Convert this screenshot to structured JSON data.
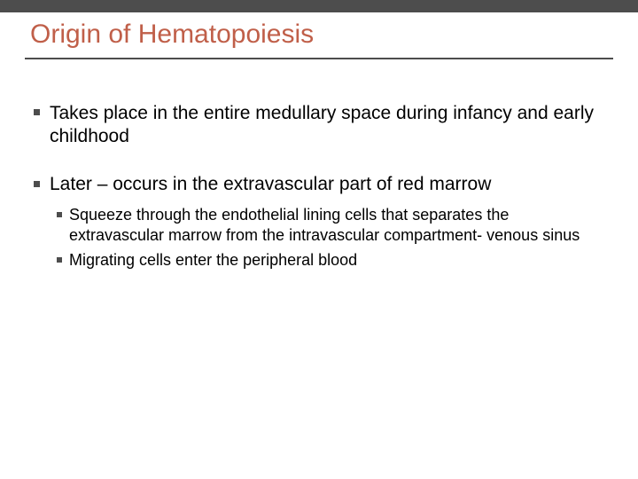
{
  "slide": {
    "title": "Origin of Hematopoiesis",
    "title_color": "#c05f49",
    "title_fontsize": 30,
    "top_bar_color": "#4d4d4d",
    "divider_color": "#4d4d4d",
    "background_color": "#ffffff",
    "body_text_color": "#000000",
    "bullet_color": "#4d4d4d",
    "lvl1_fontsize": 21,
    "lvl2_fontsize": 18,
    "bullets": [
      {
        "text": "Takes place in the entire medullary space  during infancy and early childhood",
        "children": []
      },
      {
        "text": "Later – occurs in the extravascular part of red marrow",
        "children": [
          {
            "text": "Squeeze through the endothelial lining cells that separates the extravascular marrow from the intravascular compartment- venous sinus"
          },
          {
            "text": "Migrating cells enter the peripheral blood"
          }
        ]
      }
    ]
  }
}
